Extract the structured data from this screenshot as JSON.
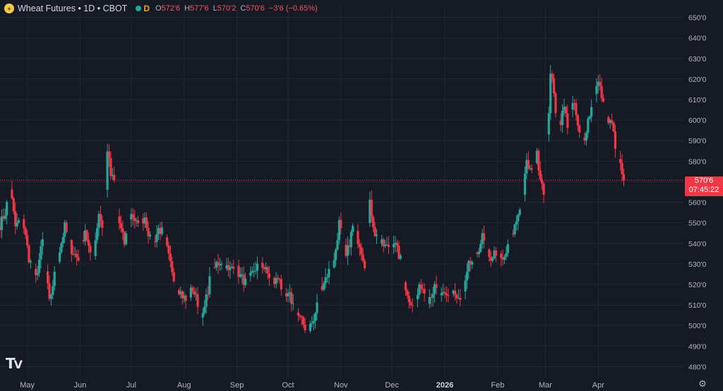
{
  "header": {
    "title": "Wheat Futures • 1D • CBOT",
    "interval_badge": "D",
    "open_key": "O",
    "open_val": "572'6",
    "high_key": "H",
    "high_val": "577'6",
    "low_key": "L",
    "low_val": "570'2",
    "close_key": "C",
    "close_val": "570'6",
    "change": "−3'6 (−0.65%)"
  },
  "price_tag": {
    "price": "570'6",
    "countdown": "07:45:22"
  },
  "colors": {
    "up": "#26a69a",
    "down": "#f23645",
    "background": "#161a25",
    "grid": "#232733",
    "text": "#b2b5be"
  },
  "chart_data": {
    "type": "candlestick",
    "title": "",
    "xlabel": "",
    "ylabel": "",
    "ylim": [
      475,
      655
    ],
    "y_ticks": [
      480,
      490,
      500,
      510,
      520,
      530,
      540,
      550,
      560,
      570,
      580,
      590,
      600,
      610,
      620,
      630,
      640,
      650
    ],
    "y_tick_labels": [
      "480'0",
      "490'0",
      "500'0",
      "510'0",
      "520'0",
      "530'0",
      "540'0",
      "550'0",
      "560'0",
      "570'0",
      "580'0",
      "590'0",
      "600'0",
      "610'0",
      "620'0",
      "630'0",
      "640'0",
      "650'0"
    ],
    "x_tick_labels": [
      {
        "label": "May",
        "day": 13
      },
      {
        "label": "Jun",
        "day": 44
      },
      {
        "label": "Jul",
        "day": 74
      },
      {
        "label": "Aug",
        "day": 105
      },
      {
        "label": "Sep",
        "day": 136
      },
      {
        "label": "Oct",
        "day": 166
      },
      {
        "label": "Nov",
        "day": 197
      },
      {
        "label": "Dec",
        "day": 227
      },
      {
        "label": "2026",
        "day": 258,
        "bold": true
      },
      {
        "label": "Feb",
        "day": 289
      },
      {
        "label": "Mar",
        "day": 317
      },
      {
        "label": "Apr",
        "day": 348
      }
    ],
    "x_range": [
      -3,
      398
    ],
    "last_price": 570.75,
    "anchors": [
      [
        -3,
        549
      ],
      [
        0,
        555
      ],
      [
        3,
        567
      ],
      [
        6,
        548
      ],
      [
        10,
        553
      ],
      [
        14,
        533
      ],
      [
        18,
        523
      ],
      [
        22,
        541
      ],
      [
        26,
        511
      ],
      [
        30,
        529
      ],
      [
        35,
        548
      ],
      [
        39,
        537
      ],
      [
        43,
        532
      ],
      [
        47,
        547
      ],
      [
        51,
        529
      ],
      [
        55,
        555
      ],
      [
        58,
        545
      ],
      [
        60,
        586
      ],
      [
        62,
        573
      ],
      [
        64,
        570
      ],
      [
        66,
        553
      ],
      [
        70,
        540
      ],
      [
        74,
        555
      ],
      [
        78,
        548
      ],
      [
        82,
        553
      ],
      [
        86,
        538
      ],
      [
        90,
        547
      ],
      [
        93,
        545
      ],
      [
        96,
        533
      ],
      [
        100,
        521
      ],
      [
        103,
        516
      ],
      [
        106,
        512
      ],
      [
        110,
        518
      ],
      [
        113,
        511
      ],
      [
        116,
        504
      ],
      [
        120,
        522
      ],
      [
        124,
        530
      ],
      [
        128,
        532
      ],
      [
        131,
        526
      ],
      [
        134,
        530
      ],
      [
        138,
        524
      ],
      [
        142,
        520
      ],
      [
        146,
        527
      ],
      [
        150,
        531
      ],
      [
        154,
        525
      ],
      [
        158,
        521
      ],
      [
        161,
        524
      ],
      [
        163,
        513
      ],
      [
        167,
        514
      ],
      [
        170,
        508
      ],
      [
        173,
        503
      ],
      [
        177,
        498
      ],
      [
        181,
        502
      ],
      [
        185,
        518
      ],
      [
        189,
        525
      ],
      [
        193,
        531
      ],
      [
        196,
        550
      ],
      [
        200,
        533
      ],
      [
        204,
        548
      ],
      [
        208,
        540
      ],
      [
        211,
        530
      ],
      [
        214,
        559
      ],
      [
        217,
        545
      ],
      [
        220,
        540
      ],
      [
        224,
        538
      ],
      [
        228,
        541
      ],
      [
        232,
        532
      ],
      [
        236,
        514
      ],
      [
        240,
        510
      ],
      [
        244,
        520
      ],
      [
        248,
        513
      ],
      [
        252,
        518
      ],
      [
        256,
        514
      ],
      [
        260,
        514
      ],
      [
        263,
        517
      ],
      [
        265,
        513
      ],
      [
        268,
        511
      ],
      [
        272,
        529
      ],
      [
        276,
        533
      ],
      [
        280,
        543
      ],
      [
        284,
        532
      ],
      [
        288,
        536
      ],
      [
        292,
        531
      ],
      [
        296,
        540
      ],
      [
        300,
        551
      ],
      [
        304,
        565
      ],
      [
        306,
        579
      ],
      [
        309,
        574
      ],
      [
        312,
        583
      ],
      [
        314,
        573
      ],
      [
        316,
        566
      ],
      [
        318,
        591
      ],
      [
        319,
        605
      ],
      [
        320,
        624
      ],
      [
        322,
        612
      ],
      [
        324,
        598
      ],
      [
        326,
        600
      ],
      [
        328,
        606
      ],
      [
        330,
        598
      ],
      [
        332,
        604
      ],
      [
        334,
        608
      ],
      [
        336,
        596
      ],
      [
        338,
        590
      ],
      [
        340,
        592
      ],
      [
        342,
        600
      ],
      [
        344,
        606
      ],
      [
        346,
        614
      ],
      [
        348,
        618
      ],
      [
        350,
        612
      ],
      [
        352,
        602
      ],
      [
        354,
        599
      ],
      [
        356,
        598
      ],
      [
        358,
        588
      ],
      [
        360,
        581
      ],
      [
        362,
        574
      ],
      [
        363,
        570.75
      ]
    ]
  }
}
